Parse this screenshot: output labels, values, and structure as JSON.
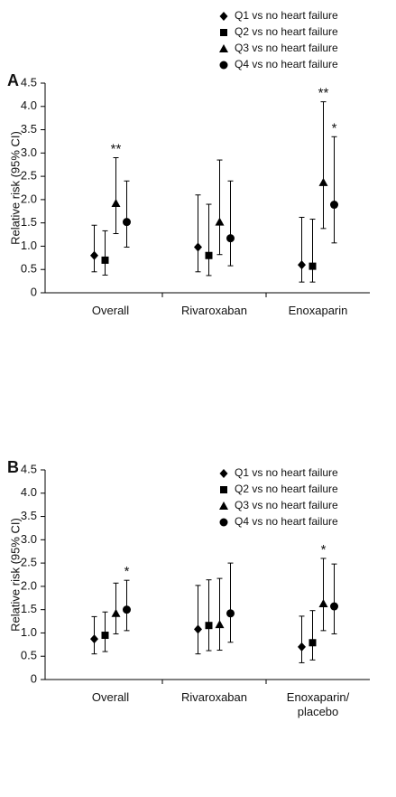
{
  "chart_data": [
    {
      "type": "errorbar",
      "panel": "A",
      "ylabel": "Relative risk (95% CI)",
      "categories": [
        "Overall",
        "Rivaroxaban",
        "Enoxaparin"
      ],
      "ylim": [
        0,
        4.5
      ],
      "yticks": [
        0,
        0.5,
        {
          "value": 1,
          "label": "1.0"
        },
        1.5,
        {
          "value": 2,
          "label": "2.0"
        },
        2.5,
        {
          "value": 3,
          "label": "3.0"
        },
        3.5,
        {
          "value": 4,
          "label": "4.0"
        },
        4.5
      ],
      "legend": "top",
      "series": [
        {
          "name": "Q1 vs no heart failure",
          "marker": "diamond",
          "color": "#000000",
          "values": [
            0.8,
            0.98,
            0.6
          ],
          "low": [
            0.45,
            0.45,
            0.23
          ],
          "high": [
            1.45,
            2.1,
            1.62
          ],
          "significance": [
            null,
            null,
            null
          ]
        },
        {
          "name": "Q2 vs no heart failure",
          "marker": "square",
          "color": "#000000",
          "values": [
            0.7,
            0.8,
            0.57
          ],
          "low": [
            0.38,
            0.37,
            0.23
          ],
          "high": [
            1.33,
            1.9,
            1.58
          ],
          "significance": [
            null,
            null,
            null
          ]
        },
        {
          "name": "Q3 vs no heart failure",
          "marker": "triangle",
          "color": "#000000",
          "values": [
            1.92,
            1.52,
            2.37
          ],
          "low": [
            1.27,
            0.82,
            1.38
          ],
          "high": [
            2.9,
            2.85,
            4.1
          ],
          "significance": [
            "**",
            null,
            "**"
          ]
        },
        {
          "name": "Q4 vs no heart failure",
          "marker": "circle",
          "color": "#000000",
          "values": [
            1.52,
            1.17,
            1.89
          ],
          "low": [
            0.98,
            0.58,
            1.07
          ],
          "high": [
            2.4,
            2.4,
            3.35
          ],
          "significance": [
            null,
            null,
            "*"
          ]
        }
      ]
    },
    {
      "type": "errorbar",
      "panel": "B",
      "ylabel": "Relative risk (95% CI)",
      "categories": [
        "Overall",
        "Rivaroxaban",
        "Enoxaparin/ placebo"
      ],
      "ylim": [
        0,
        4.5
      ],
      "yticks": [
        0,
        0.5,
        {
          "value": 1,
          "label": "1.0"
        },
        1.5,
        {
          "value": 2,
          "label": "2.0"
        },
        2.5,
        {
          "value": 3,
          "label": "3.0"
        },
        3.5,
        {
          "value": 4,
          "label": "4.0"
        },
        4.5
      ],
      "legend": "upper right",
      "series": [
        {
          "name": "Q1 vs no heart failure",
          "marker": "diamond",
          "color": "#000000",
          "values": [
            0.87,
            1.08,
            0.7
          ],
          "low": [
            0.55,
            0.55,
            0.36
          ],
          "high": [
            1.35,
            2.02,
            1.36
          ],
          "significance": [
            null,
            null,
            null
          ]
        },
        {
          "name": "Q2 vs no heart failure",
          "marker": "square",
          "color": "#000000",
          "values": [
            0.95,
            1.16,
            0.79
          ],
          "low": [
            0.6,
            0.62,
            0.42
          ],
          "high": [
            1.45,
            2.14,
            1.48
          ],
          "significance": [
            null,
            null,
            null
          ]
        },
        {
          "name": "Q3 vs no heart failure",
          "marker": "triangle",
          "color": "#000000",
          "values": [
            1.42,
            1.18,
            1.63
          ],
          "low": [
            0.98,
            0.63,
            1.05
          ],
          "high": [
            2.07,
            2.17,
            2.6
          ],
          "significance": [
            null,
            null,
            "*"
          ]
        },
        {
          "name": "Q4 vs no heart failure",
          "marker": "circle",
          "color": "#000000",
          "values": [
            1.5,
            1.42,
            1.57
          ],
          "low": [
            1.05,
            0.8,
            0.98
          ],
          "high": [
            2.13,
            2.5,
            2.48
          ],
          "significance": [
            "*",
            null,
            null
          ]
        }
      ]
    }
  ]
}
